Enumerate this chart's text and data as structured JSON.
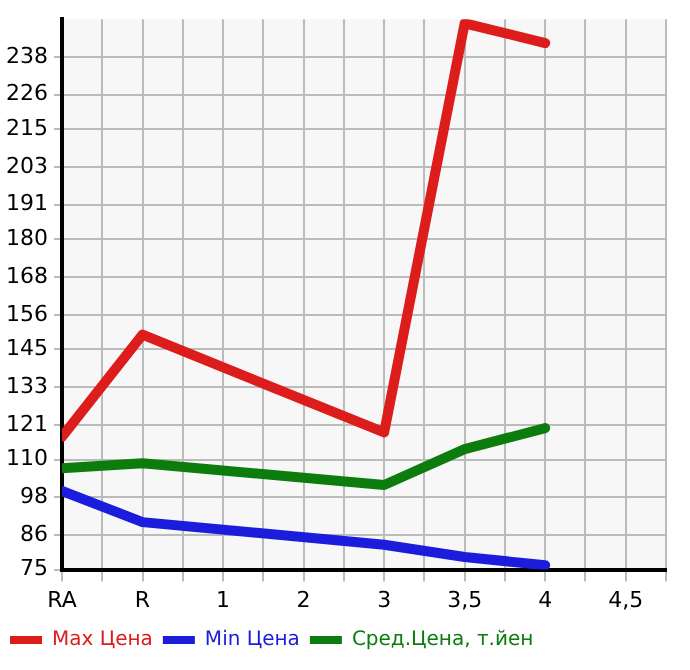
{
  "chart_data": {
    "type": "line",
    "categories": [
      "RA",
      "R",
      "1",
      "2",
      "3",
      "3,5",
      "4",
      "4,5"
    ],
    "series": [
      {
        "name": "Max Цена",
        "color": "#dd1c1c",
        "values": [
          117.2,
          149.7,
          null,
          null,
          118.6,
          248.7,
          242.4,
          null
        ]
      },
      {
        "name": "Min Цена",
        "color": "#1c1cdd",
        "values": [
          100,
          90.1,
          null,
          null,
          82.9,
          79,
          76.4,
          null
        ]
      },
      {
        "name": "Сред.Цена, т.йен",
        "color": "#0c7c0c",
        "values": [
          107.2,
          108.8,
          null,
          null,
          101.9,
          113.3,
          120,
          null
        ]
      }
    ],
    "ylim": [
      75,
      250
    ],
    "yticks": [
      75,
      86,
      98,
      110,
      121,
      133,
      145,
      156,
      168,
      180,
      191,
      203,
      215,
      226,
      238
    ],
    "grid": true,
    "legend": "bottom",
    "marker": "none",
    "line_style": "solid"
  }
}
